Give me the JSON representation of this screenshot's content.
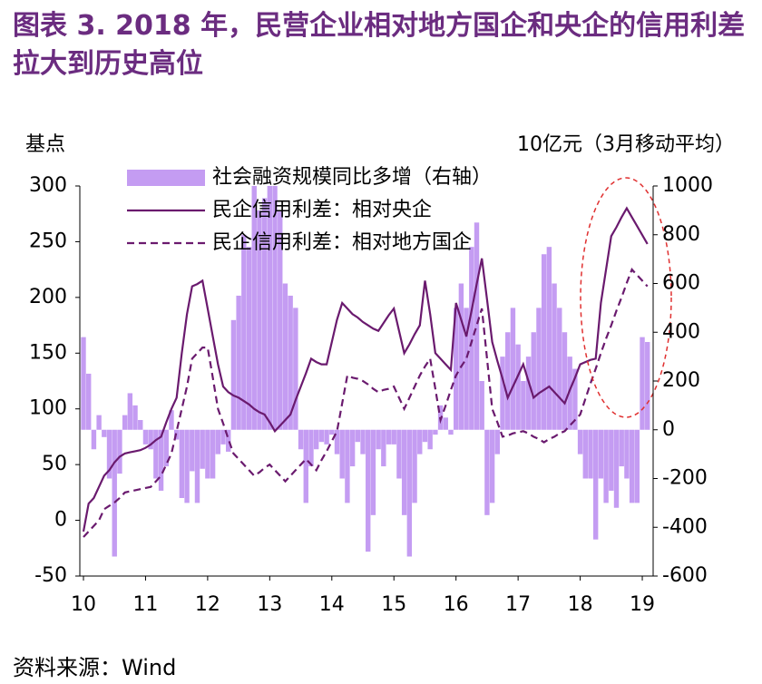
{
  "chart_data": {
    "type": "combo",
    "title": "图表 3.   2018 年，民营企业相对地方国企和央企的信用利差拉大到历史高位",
    "y_label": "基点",
    "y2_label": "10亿元（3月移动平均）",
    "source": "资料来源：Wind",
    "categories": [
      "10",
      null,
      null,
      null,
      null,
      null,
      null,
      null,
      null,
      null,
      null,
      null,
      "11",
      null,
      null,
      null,
      null,
      null,
      null,
      null,
      null,
      null,
      null,
      null,
      "12",
      null,
      null,
      null,
      null,
      null,
      null,
      null,
      null,
      null,
      null,
      null,
      "13",
      null,
      null,
      null,
      null,
      null,
      null,
      null,
      null,
      null,
      null,
      null,
      "14",
      null,
      null,
      null,
      null,
      null,
      null,
      null,
      null,
      null,
      null,
      null,
      "15",
      null,
      null,
      null,
      null,
      null,
      null,
      null,
      null,
      null,
      null,
      null,
      "16",
      null,
      null,
      null,
      null,
      null,
      null,
      null,
      null,
      null,
      null,
      null,
      "17",
      null,
      null,
      null,
      null,
      null,
      null,
      null,
      null,
      null,
      null,
      null,
      "18",
      null,
      null,
      null,
      null,
      null,
      null,
      null,
      null,
      null,
      null,
      null,
      "19",
      null
    ],
    "ylim": [
      -50,
      300
    ],
    "yticks": [
      -50,
      0,
      50,
      100,
      150,
      200,
      250,
      300
    ],
    "y2lim": [
      -600,
      1000
    ],
    "y2ticks": [
      -600,
      -400,
      -200,
      0,
      200,
      400,
      600,
      800,
      1000
    ],
    "legend": "upper left",
    "grid": false,
    "series": [
      {
        "name": "社会融资规模同比多增（右轴）",
        "type": "bar",
        "axis": "y2",
        "color": "#c49cf2",
        "values": [
          380,
          230,
          -80,
          60,
          -30,
          -200,
          -520,
          -180,
          60,
          150,
          100,
          40,
          -60,
          -80,
          -200,
          -250,
          -150,
          80,
          -40,
          -280,
          -300,
          -170,
          -300,
          -160,
          -200,
          -200,
          -100,
          -60,
          -90,
          450,
          550,
          800,
          750,
          1000,
          900,
          950,
          1000,
          1000,
          900,
          600,
          550,
          500,
          -80,
          -300,
          -150,
          -80,
          -50,
          -60,
          -20,
          -100,
          -200,
          -300,
          -150,
          -50,
          -100,
          -500,
          -350,
          -80,
          -150,
          -60,
          -60,
          -200,
          -350,
          -520,
          -300,
          -100,
          -50,
          -80,
          -20,
          100,
          50,
          -20,
          500,
          600,
          500,
          750,
          850,
          200,
          -350,
          -300,
          -100,
          300,
          400,
          500,
          350,
          200,
          300,
          400,
          500,
          720,
          750,
          600,
          500,
          400,
          300,
          250,
          -100,
          -200,
          -200,
          -450,
          -200,
          -300,
          -250,
          -320,
          -150,
          -200,
          -300,
          -300,
          380,
          360
        ]
      },
      {
        "name": "民企信用利差：相对央企",
        "type": "line",
        "style": "solid",
        "color": "#6a1a6e",
        "values": [
          -10,
          15,
          20,
          30,
          40,
          45,
          52,
          57,
          60,
          61,
          62,
          63,
          65,
          68,
          72,
          75,
          88,
          100,
          110,
          150,
          185,
          210,
          212,
          215,
          190,
          165,
          140,
          120,
          115,
          112,
          110,
          107,
          104,
          100,
          97,
          95,
          88,
          80,
          85,
          90,
          95,
          108,
          120,
          132,
          145,
          142,
          140,
          140,
          160,
          180,
          195,
          190,
          185,
          182,
          178,
          175,
          172,
          170,
          177,
          184,
          190,
          170,
          150,
          158,
          167,
          175,
          215,
          185,
          150,
          145,
          140,
          135,
          195,
          180,
          165,
          188,
          212,
          235,
          198,
          160,
          143,
          127,
          110,
          120,
          130,
          140,
          125,
          110,
          114,
          117,
          120,
          115,
          110,
          105,
          117,
          128,
          140,
          142,
          144,
          145,
          195,
          225,
          255,
          263,
          272,
          280,
          272,
          264,
          256,
          248
        ]
      },
      {
        "name": "民企信用利差：相对地方国企",
        "type": "line",
        "style": "dashed",
        "color": "#6a1a6e",
        "values": [
          -15,
          -10,
          -5,
          0,
          10,
          13,
          16,
          20,
          25,
          26,
          27,
          28,
          29,
          30,
          35,
          40,
          50,
          60,
          80,
          100,
          120,
          145,
          150,
          155,
          155,
          128,
          100,
          87,
          73,
          60,
          55,
          50,
          45,
          40,
          43,
          47,
          50,
          45,
          40,
          35,
          40,
          45,
          50,
          55,
          50,
          45,
          54,
          62,
          71,
          80,
          105,
          130,
          128,
          127,
          125,
          122,
          118,
          115,
          117,
          118,
          120,
          110,
          100,
          110,
          120,
          130,
          138,
          145,
          118,
          90,
          103,
          117,
          130,
          138,
          145,
          160,
          175,
          190,
          145,
          100,
          88,
          75,
          76,
          78,
          79,
          80,
          78,
          75,
          73,
          70,
          73,
          75,
          78,
          80,
          85,
          90,
          95,
          109,
          123,
          136,
          150,
          163,
          175,
          188,
          200,
          213,
          225,
          220,
          215,
          210
        ]
      }
    ]
  }
}
